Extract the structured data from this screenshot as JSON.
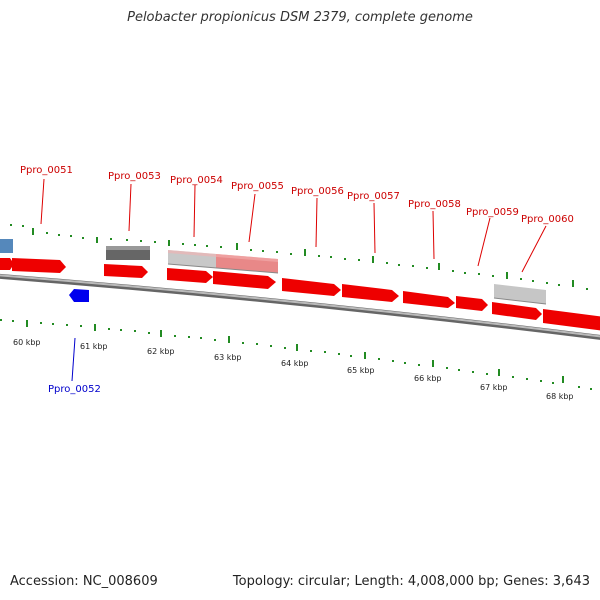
{
  "title": "Pelobacter propionicus DSM 2379, complete genome",
  "accession": "Accession: NC_008609",
  "summary": "Topology: circular; Length: 4,008,000 bp; Genes: 3,643",
  "colors": {
    "plus_gene": "#ff0000",
    "minus_gene": "#0000ff",
    "backbone": "#888888",
    "tick": "#228b22",
    "label_plus": "#cc0000",
    "label_minus": "#0000cc"
  },
  "kbp_labels": [
    "60 kbp",
    "61 kbp",
    "62 kbp",
    "63 kbp",
    "64 kbp",
    "65 kbp",
    "66 kbp",
    "67 kbp",
    "68 kbp"
  ],
  "gene_labels": [
    {
      "text": "Ppro_0051",
      "strand": "plus"
    },
    {
      "text": "Ppro_0052",
      "strand": "minus"
    },
    {
      "text": "Ppro_0053",
      "strand": "plus"
    },
    {
      "text": "Ppro_0054",
      "strand": "plus"
    },
    {
      "text": "Ppro_0055",
      "strand": "plus"
    },
    {
      "text": "Ppro_0056",
      "strand": "plus"
    },
    {
      "text": "Ppro_0057",
      "strand": "plus"
    },
    {
      "text": "Ppro_0058",
      "strand": "plus"
    },
    {
      "text": "Ppro_0059",
      "strand": "plus"
    },
    {
      "text": "Ppro_0060",
      "strand": "plus"
    }
  ]
}
